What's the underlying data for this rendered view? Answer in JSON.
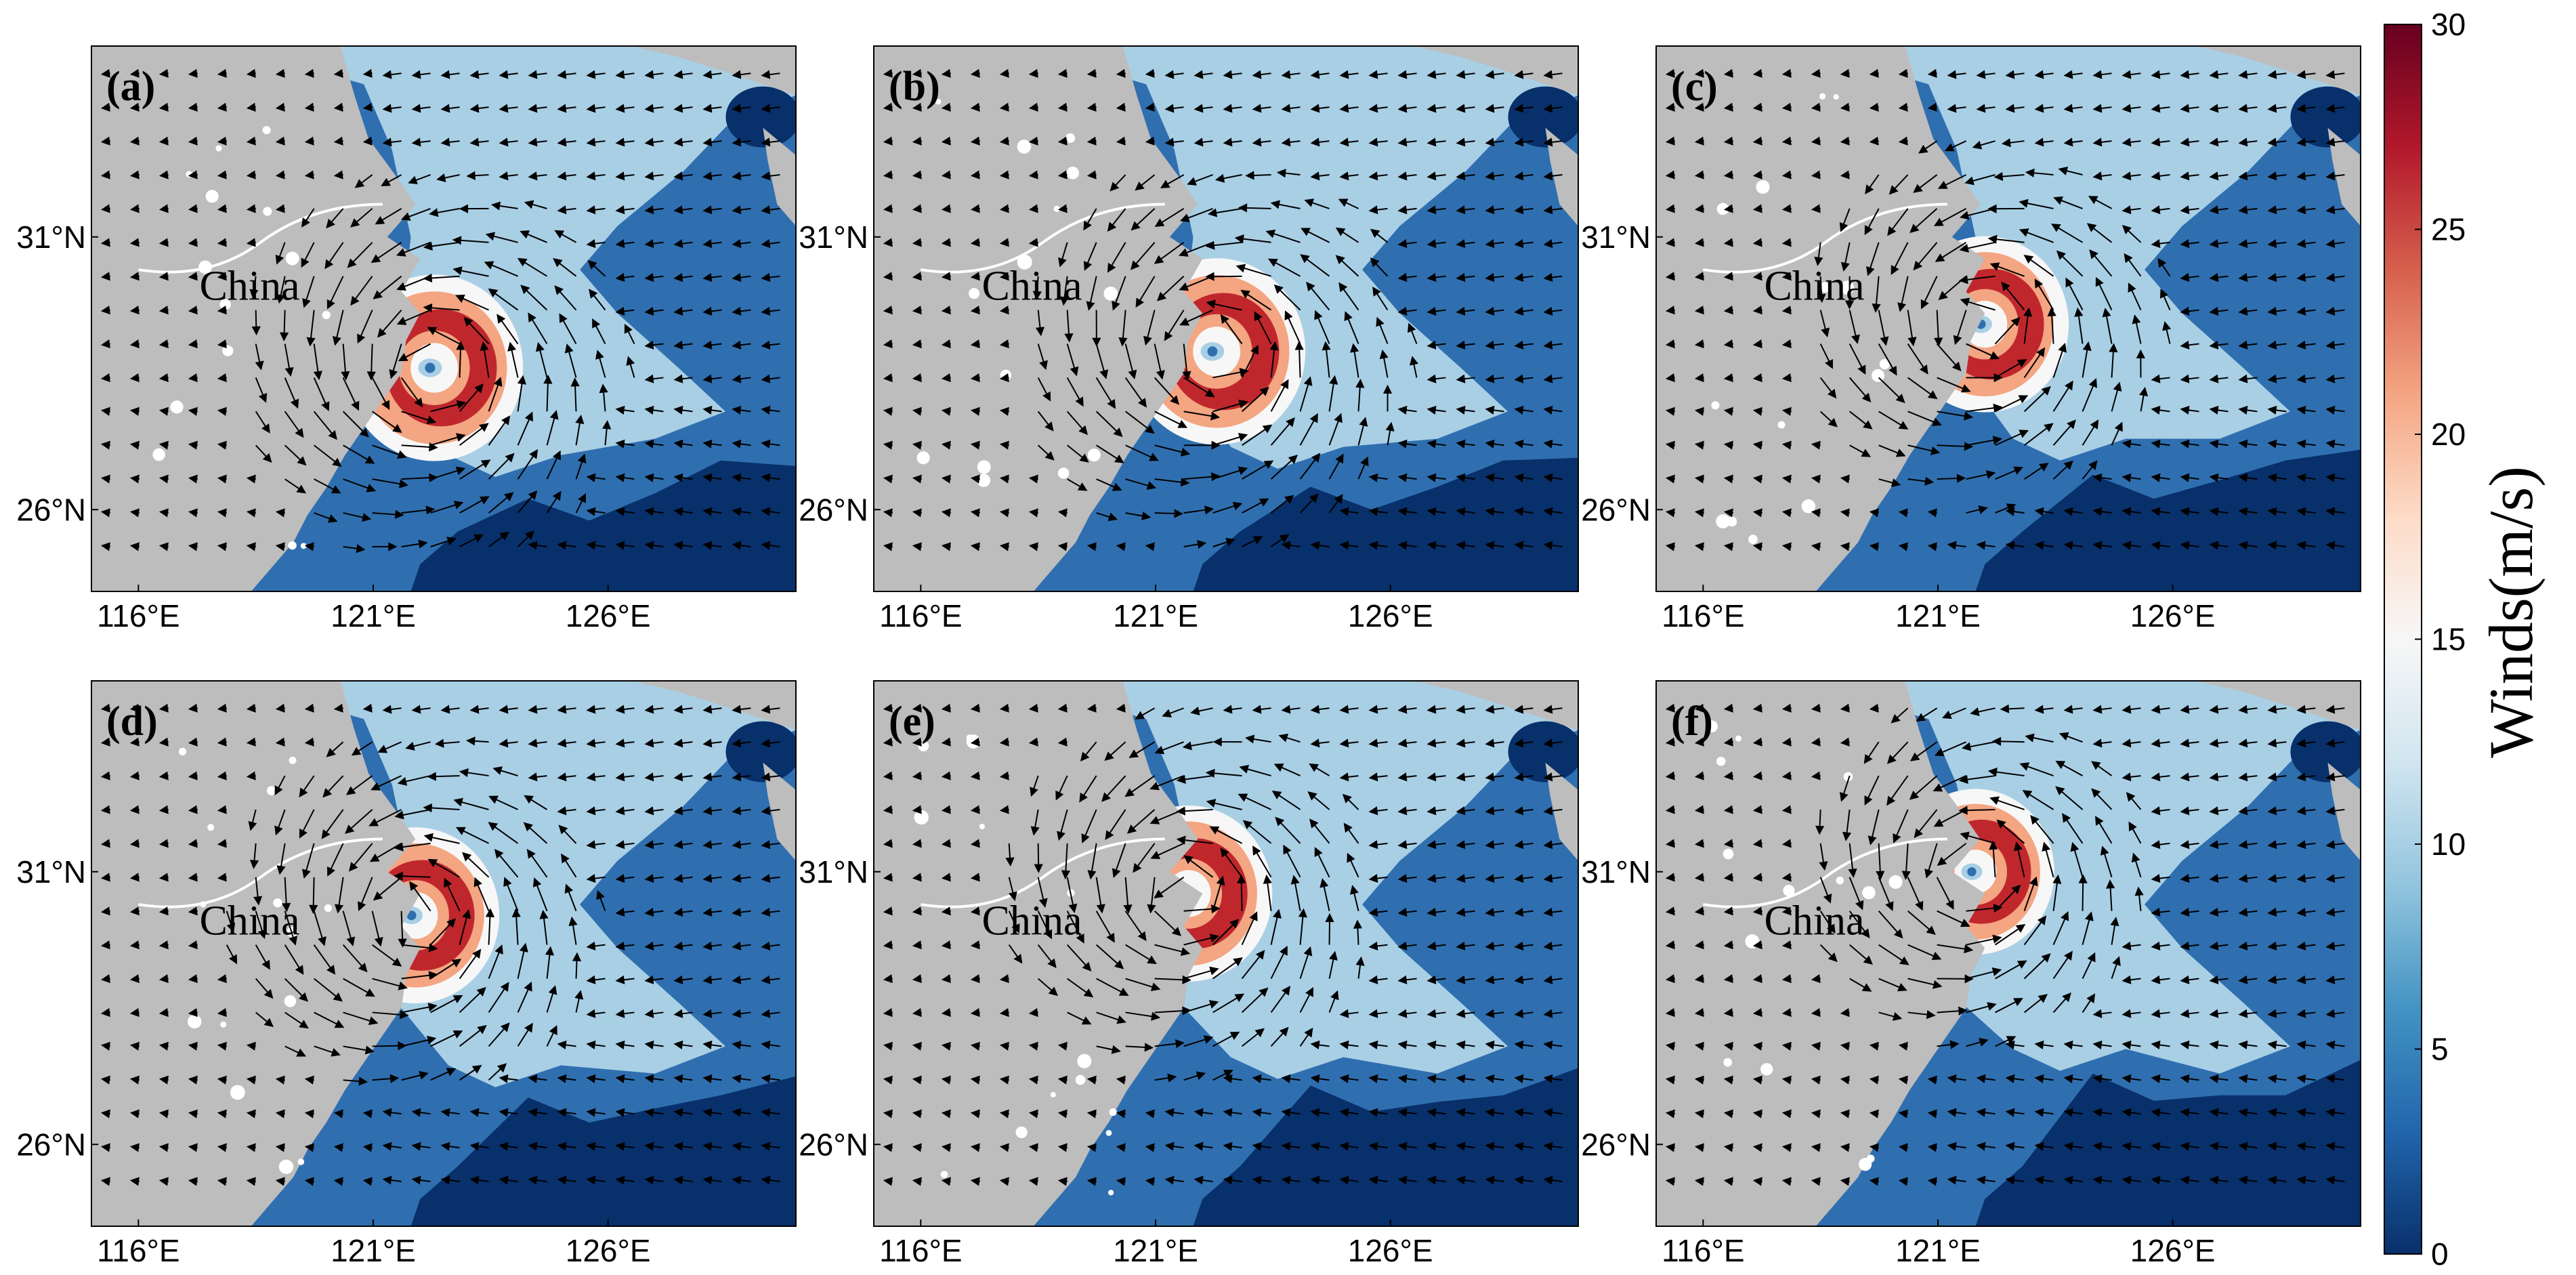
{
  "figure": {
    "panels": [
      {
        "label": "(a)",
        "place": "China",
        "center_lon": 122.3,
        "center_lat": 28.6,
        "radius_deg": 1.8
      },
      {
        "label": "(b)",
        "place": "China",
        "center_lon": 122.3,
        "center_lat": 28.9,
        "radius_deg": 1.8
      },
      {
        "label": "(c)",
        "place": "China",
        "center_lon": 122.0,
        "center_lat": 29.4,
        "radius_deg": 1.7
      },
      {
        "label": "(d)",
        "place": "China",
        "center_lon": 121.9,
        "center_lat": 30.2,
        "radius_deg": 1.7
      },
      {
        "label": "(e)",
        "place": "China",
        "center_lon": 121.7,
        "center_lat": 30.6,
        "radius_deg": 1.7
      },
      {
        "label": "(f)",
        "place": "China",
        "center_lon": 121.8,
        "center_lat": 31.0,
        "radius_deg": 1.6
      }
    ],
    "x_ticks": [
      "116°E",
      "121°E",
      "126°E"
    ],
    "x_tick_values": [
      116,
      121,
      126
    ],
    "y_ticks": [
      "31°N",
      "26°N"
    ],
    "y_tick_values": [
      31,
      26
    ],
    "lon_range": [
      115,
      130
    ],
    "lat_range": [
      24.5,
      34.5
    ]
  },
  "colorbar": {
    "title": "Winds(m/s)",
    "ticks": [
      "0",
      "5",
      "10",
      "15",
      "20",
      "25",
      "30"
    ],
    "tick_values": [
      0,
      5,
      10,
      15,
      20,
      25,
      30
    ],
    "range": [
      0,
      30
    ],
    "colors": [
      "#08306b",
      "#2166ac",
      "#4393c3",
      "#92c5de",
      "#d1e5f0",
      "#f7f7f7",
      "#fddbc7",
      "#f4a582",
      "#d6604d",
      "#b2182b",
      "#67001f"
    ]
  },
  "colors": {
    "land": "#bdbdbd",
    "wind_very_low": "#08306b",
    "wind_low": "#2f6fb0",
    "wind_mid": "#a9cfe5",
    "wind_high": "#f7f7f7",
    "wind_higher": "#f4a582",
    "wind_max": "#c0272d",
    "arrow": "#000000"
  }
}
